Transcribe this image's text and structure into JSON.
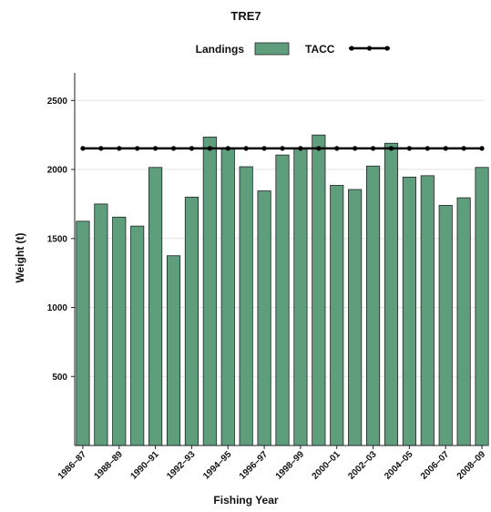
{
  "chart_data": {
    "type": "bar",
    "title": "TRE7",
    "xlabel": "Fishing Year",
    "ylabel": "Weight (t)",
    "ylim": [
      0,
      2700
    ],
    "yticks": [
      500,
      1000,
      1500,
      2000,
      2500
    ],
    "grid": true,
    "legend_position": "top-center",
    "categories": [
      "1986–87",
      "1987–88",
      "1988–89",
      "1989–90",
      "1990–91",
      "1991–92",
      "1992–93",
      "1993–94",
      "1994–95",
      "1995–96",
      "1996–97",
      "1997–98",
      "1998–99",
      "1999–00",
      "2000–01",
      "2001–02",
      "2002–03",
      "2003–04",
      "2004–05",
      "2005–06",
      "2006–07",
      "2007–08",
      "2008–09"
    ],
    "x_tick_labels": [
      "1986–87",
      "1988–89",
      "1990–91",
      "1992–93",
      "1994–95",
      "1996–97",
      "1998–99",
      "2000–01",
      "2002–03",
      "2004–05",
      "2006–07",
      "2008–09"
    ],
    "series": [
      {
        "name": "Landings",
        "type": "bar",
        "color": "#5f9e7c",
        "values": [
          1625,
          1750,
          1655,
          1590,
          2015,
          1375,
          1800,
          2235,
          2150,
          2020,
          1845,
          2105,
          2155,
          2250,
          1885,
          1855,
          2025,
          2190,
          1945,
          1955,
          1740,
          1795,
          2015
        ]
      },
      {
        "name": "TACC",
        "type": "line",
        "color": "#000000",
        "values": [
          2153,
          2153,
          2153,
          2153,
          2153,
          2153,
          2153,
          2153,
          2153,
          2153,
          2153,
          2153,
          2153,
          2153,
          2153,
          2153,
          2153,
          2153,
          2153,
          2153,
          2153,
          2153,
          2153
        ]
      }
    ]
  }
}
